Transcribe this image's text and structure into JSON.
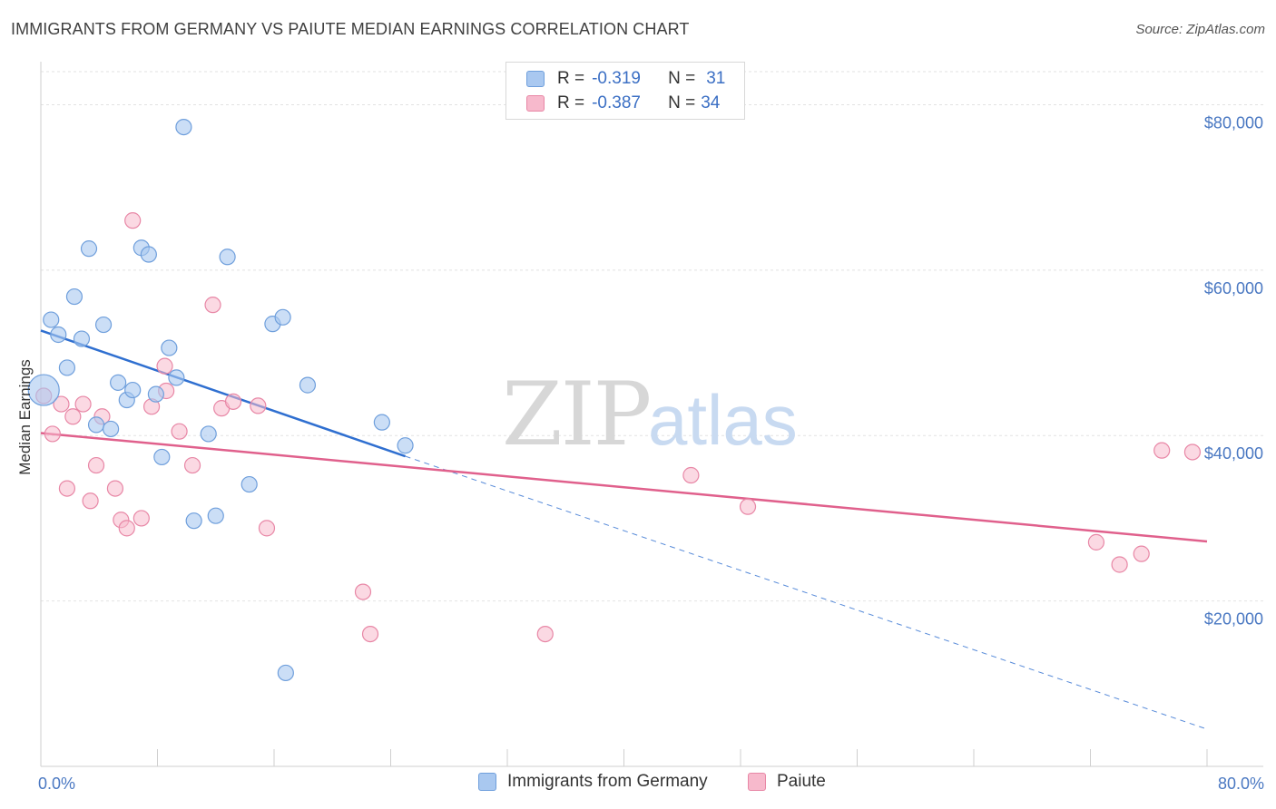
{
  "title": "IMMIGRANTS FROM GERMANY VS PAIUTE MEDIAN EARNINGS CORRELATION CHART",
  "source": "Source: ZipAtlas.com",
  "watermark": {
    "zip": "ZIP",
    "atlas": "atlas"
  },
  "legend": {
    "rows": [
      {
        "r_label": "R =",
        "r_value": "-0.319",
        "n_label": "N =",
        "n_value": "31"
      },
      {
        "r_label": "R =",
        "r_value": "-0.387",
        "n_label": "N =",
        "n_value": "34"
      }
    ]
  },
  "colors": {
    "germany_fill": "#a9c8f0",
    "germany_stroke": "#6f9fdc",
    "germany_line": "#2f6fd0",
    "paiute_fill": "#f7b9cc",
    "paiute_stroke": "#e887a6",
    "paiute_line": "#e0608c"
  },
  "chart_data": {
    "type": "scatter",
    "title": "IMMIGRANTS FROM GERMANY VS PAIUTE MEDIAN EARNINGS CORRELATION CHART",
    "xlabel": "",
    "ylabel": "Median Earnings",
    "xlim": [
      0,
      80
    ],
    "ylim": [
      0,
      84000
    ],
    "x_tick_labels": [
      "0.0%",
      "80.0%"
    ],
    "y_ticks": [
      20000,
      40000,
      60000,
      80000
    ],
    "y_tick_labels": [
      "$20,000",
      "$40,000",
      "$60,000",
      "$80,000"
    ],
    "grid": true,
    "legend_position": "top-center",
    "series": [
      {
        "name": "Immigrants from Germany",
        "points": [
          [
            0.2,
            45500
          ],
          [
            0.7,
            54000
          ],
          [
            1.2,
            52200
          ],
          [
            1.8,
            48200
          ],
          [
            2.3,
            56800
          ],
          [
            2.8,
            51700
          ],
          [
            3.3,
            62600
          ],
          [
            3.8,
            41300
          ],
          [
            4.3,
            53400
          ],
          [
            4.8,
            40800
          ],
          [
            5.3,
            46400
          ],
          [
            5.9,
            44300
          ],
          [
            6.3,
            45500
          ],
          [
            6.9,
            62700
          ],
          [
            7.4,
            61900
          ],
          [
            7.9,
            45000
          ],
          [
            8.3,
            37400
          ],
          [
            8.8,
            50600
          ],
          [
            9.3,
            47000
          ],
          [
            9.8,
            77300
          ],
          [
            10.5,
            29700
          ],
          [
            11.5,
            40200
          ],
          [
            12.0,
            30300
          ],
          [
            12.8,
            61600
          ],
          [
            14.3,
            34100
          ],
          [
            15.9,
            53500
          ],
          [
            16.6,
            54300
          ],
          [
            16.8,
            11300
          ],
          [
            18.3,
            46100
          ],
          [
            23.4,
            41600
          ],
          [
            25.0,
            38800
          ]
        ],
        "trend": {
          "x": [
            0,
            25.0
          ],
          "y": [
            52700,
            37500
          ]
        },
        "trend_extension": {
          "x": [
            25.0,
            80
          ],
          "y": [
            37500,
            4500
          ]
        }
      },
      {
        "name": "Paiute",
        "points": [
          [
            0.2,
            44800
          ],
          [
            0.8,
            40200
          ],
          [
            1.4,
            43800
          ],
          [
            1.8,
            33600
          ],
          [
            2.2,
            42300
          ],
          [
            2.9,
            43800
          ],
          [
            3.4,
            32100
          ],
          [
            3.8,
            36400
          ],
          [
            4.2,
            42300
          ],
          [
            5.1,
            33600
          ],
          [
            5.5,
            29800
          ],
          [
            5.9,
            28800
          ],
          [
            6.3,
            66000
          ],
          [
            6.9,
            30000
          ],
          [
            7.6,
            43500
          ],
          [
            8.5,
            48400
          ],
          [
            8.6,
            45400
          ],
          [
            9.5,
            40500
          ],
          [
            10.4,
            36400
          ],
          [
            11.8,
            55800
          ],
          [
            12.4,
            43300
          ],
          [
            13.2,
            44100
          ],
          [
            14.9,
            43600
          ],
          [
            15.5,
            28800
          ],
          [
            22.1,
            21100
          ],
          [
            22.6,
            16000
          ],
          [
            34.6,
            16000
          ],
          [
            44.6,
            35200
          ],
          [
            48.5,
            31400
          ],
          [
            72.4,
            27100
          ],
          [
            74.0,
            24400
          ],
          [
            75.5,
            25700
          ],
          [
            76.9,
            38200
          ],
          [
            79.0,
            38000
          ]
        ],
        "trend": {
          "x": [
            0,
            80
          ],
          "y": [
            40300,
            27200
          ]
        }
      }
    ]
  }
}
